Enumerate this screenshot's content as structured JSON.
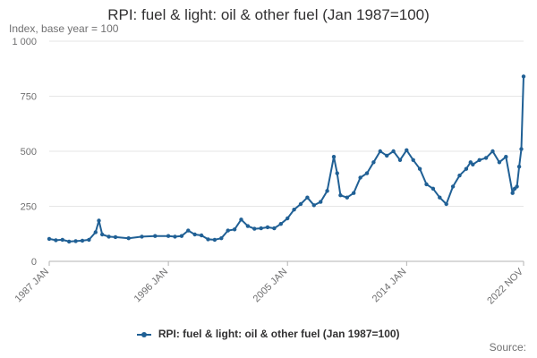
{
  "chart_data": {
    "type": "line",
    "title": "RPI: fuel & light: oil & other fuel (Jan 1987=100)",
    "ylabel": "Index, base year = 100",
    "xlabel": "",
    "ylim": [
      0,
      1000
    ],
    "yticks": [
      0,
      250,
      500,
      750,
      1000
    ],
    "ytick_labels": [
      "0",
      "250",
      "500",
      "750",
      "1 000"
    ],
    "xticks": [
      {
        "x": "1987-01",
        "label": "1987 JAN"
      },
      {
        "x": "1996-01",
        "label": "1996 JAN"
      },
      {
        "x": "2005-01",
        "label": "2005 JAN"
      },
      {
        "x": "2014-01",
        "label": "2014 JAN"
      },
      {
        "x": "2022-11",
        "label": "2022 NOV"
      }
    ],
    "xlim": [
      "1987-01",
      "2022-11"
    ],
    "grid": true,
    "legend": "bottom",
    "color": "#206095",
    "series": [
      {
        "name": "RPI: fuel & light: oil & other fuel (Jan 1987=100)",
        "x": [
          "1987-01",
          "1987-07",
          "1988-01",
          "1988-07",
          "1989-01",
          "1989-07",
          "1990-01",
          "1990-07",
          "1990-10",
          "1991-01",
          "1991-07",
          "1992-01",
          "1993-01",
          "1994-01",
          "1995-01",
          "1996-01",
          "1996-07",
          "1997-01",
          "1997-07",
          "1998-01",
          "1998-07",
          "1999-01",
          "1999-07",
          "2000-01",
          "2000-07",
          "2001-01",
          "2001-07",
          "2002-01",
          "2002-07",
          "2003-01",
          "2003-07",
          "2004-01",
          "2004-07",
          "2005-01",
          "2005-07",
          "2006-01",
          "2006-07",
          "2007-01",
          "2007-07",
          "2008-01",
          "2008-07",
          "2008-10",
          "2009-01",
          "2009-07",
          "2010-01",
          "2010-07",
          "2011-01",
          "2011-07",
          "2012-01",
          "2012-07",
          "2013-01",
          "2013-07",
          "2014-01",
          "2014-07",
          "2015-01",
          "2015-07",
          "2016-01",
          "2016-07",
          "2017-01",
          "2017-07",
          "2018-01",
          "2018-07",
          "2018-11",
          "2019-01",
          "2019-07",
          "2020-01",
          "2020-07",
          "2021-01",
          "2021-07",
          "2022-01",
          "2022-03",
          "2022-05",
          "2022-07",
          "2022-09",
          "2022-11"
        ],
        "values": [
          102,
          96,
          98,
          90,
          92,
          94,
          98,
          132,
          185,
          122,
          112,
          110,
          105,
          112,
          115,
          115,
          112,
          115,
          140,
          122,
          118,
          100,
          98,
          105,
          140,
          145,
          190,
          160,
          148,
          150,
          155,
          150,
          170,
          195,
          235,
          260,
          290,
          255,
          270,
          320,
          475,
          400,
          300,
          290,
          310,
          380,
          400,
          450,
          500,
          480,
          500,
          460,
          505,
          460,
          420,
          350,
          330,
          290,
          260,
          340,
          390,
          420,
          450,
          440,
          460,
          470,
          500,
          450,
          475,
          310,
          330,
          340,
          430,
          510,
          840
        ]
      }
    ]
  },
  "source_label": "Source:"
}
